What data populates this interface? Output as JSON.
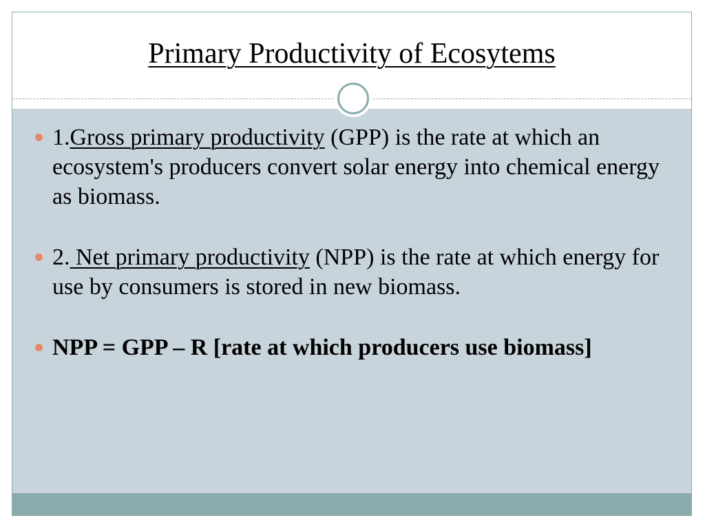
{
  "slide": {
    "title": "Primary Productivity of Ecosytems",
    "bullets": [
      {
        "prefix": "1.",
        "term": "Gross primary productivity",
        "rest": " (GPP) is the rate at which an ecosystem's producers convert solar energy into chemical energy as biomass."
      },
      {
        "prefix": "2.",
        "term": " Net primary productivity",
        "rest": " (NPP) is the rate at which energy for use by consumers is stored in new biomass."
      },
      {
        "text": "NPP = GPP – R [rate at which producers use biomass]"
      }
    ]
  },
  "colors": {
    "body_background": "#c8d4dc",
    "accent": "#8aabad",
    "bullet": "#e8886a"
  },
  "icons": {
    "divider_ornament": "ring-icon",
    "bullet_marker": "bullet-dot-icon"
  }
}
